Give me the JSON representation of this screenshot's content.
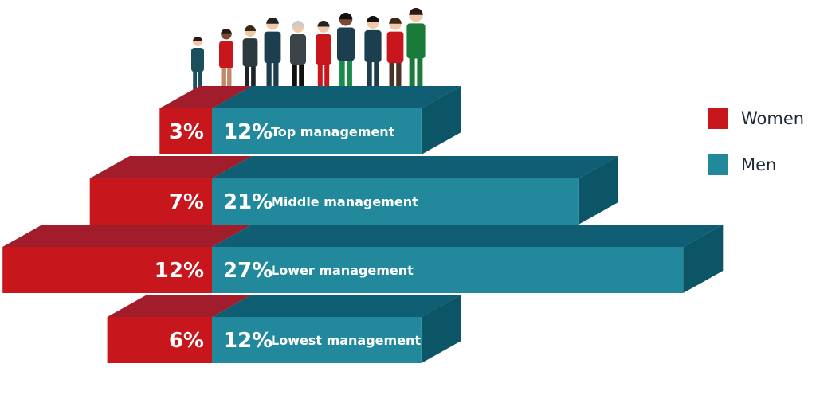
{
  "chart_data": {
    "type": "bar",
    "subtype": "diverging-stacked-3d",
    "categories": [
      "Top management",
      "Middle management",
      "Lower management",
      "Lowest management"
    ],
    "series": [
      {
        "name": "Women",
        "values": [
          3,
          7,
          12,
          6
        ],
        "labels": [
          "3%",
          "7%",
          "12%",
          "6%"
        ]
      },
      {
        "name": "Men",
        "values": [
          12,
          21,
          27,
          12
        ],
        "labels": [
          "12%",
          "21%",
          "27%",
          "12%"
        ]
      }
    ],
    "unit": "%",
    "legend_position": "right",
    "grid": false,
    "title": ""
  },
  "colors": {
    "women_front": "#c8161d",
    "women_top": "#a21d2b",
    "men_front": "#21899b",
    "men_top": "#0f5e73",
    "men_side": "#0c5566",
    "legend_women": "#c8161d",
    "legend_men": "#21899b"
  },
  "legend": [
    {
      "label": "Women",
      "color_key": "legend_women"
    },
    {
      "label": "Men",
      "color_key": "legend_men"
    }
  ],
  "illustration": {
    "figures": "group-of-business-people-icon"
  }
}
